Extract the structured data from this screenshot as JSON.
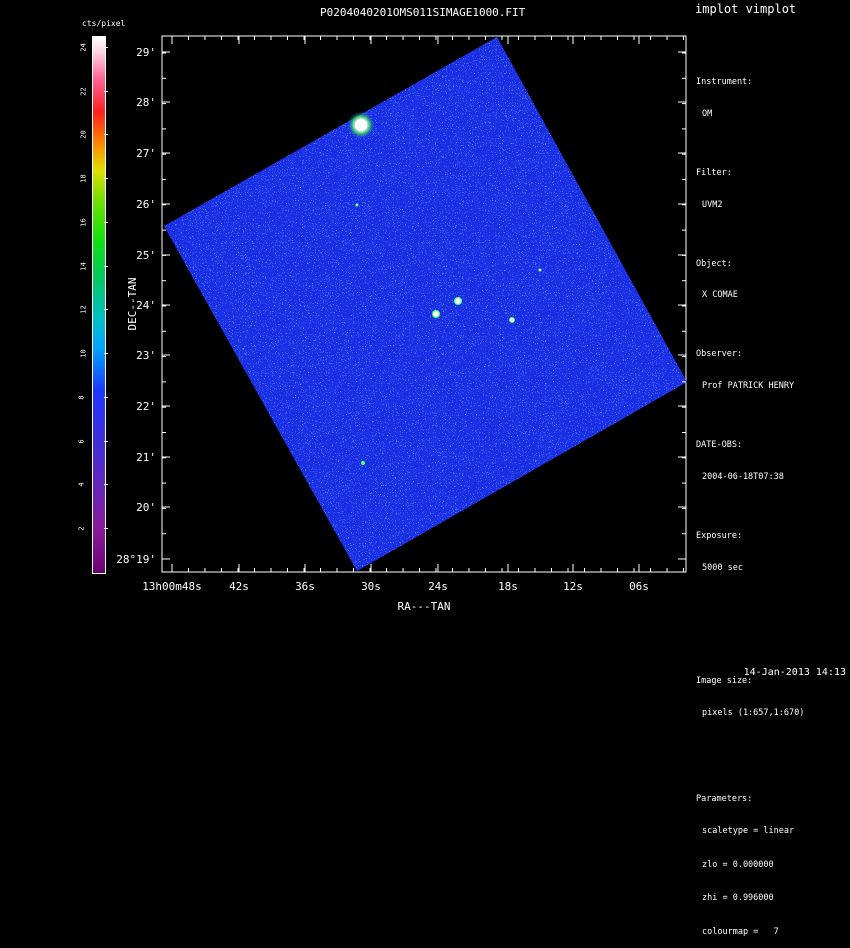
{
  "header": {
    "title": "P0204040201OMS011SIMAGE1000.FIT",
    "app_label": "implot vimplot"
  },
  "colorbar": {
    "unit_label": "cts/pixel",
    "ticks": [
      "2",
      "4",
      "6",
      "8",
      "10",
      "12",
      "14",
      "16",
      "18",
      "20",
      "22",
      "24"
    ]
  },
  "axes": {
    "x_label": "RA---TAN",
    "y_label": "DEC--TAN",
    "x_ticks": [
      "13h00m48s",
      "42s",
      "36s",
      "30s",
      "24s",
      "18s",
      "12s",
      "06s"
    ],
    "y_ticks": [
      "28°19'",
      "20'",
      "21'",
      "22'",
      "23'",
      "24'",
      "25'",
      "26'",
      "27'",
      "28'",
      "29'"
    ]
  },
  "info": {
    "instrument_label": "Instrument:",
    "instrument": "OM",
    "filter_label": "Filter:",
    "filter": "UVM2",
    "object_label": "Object:",
    "object": "X COMAE",
    "observer_label": "Observer:",
    "observer": "Prof PATRICK HENRY",
    "date_label": "DATE-OBS:",
    "date": "2004-06-18T07:38",
    "exposure_label": "Exposure:",
    "exposure": "5000 sec",
    "image_size_label": "Image size:",
    "image_size": "pixels (1:657,1:670)",
    "parameters_label": "Parameters:",
    "scaletype": "scaletype = linear",
    "zlo": "zlo = 0.000000",
    "zhi": "zhi = 0.996000",
    "colourmap": "colourmap =   7"
  },
  "footer": {
    "timestamp": "14-Jan-2013 14:13"
  },
  "colors": {
    "image_blue": "#1a2ee6",
    "noise_cyan": "#3cc6c8",
    "star": "#ffffff",
    "background": "#000000"
  }
}
